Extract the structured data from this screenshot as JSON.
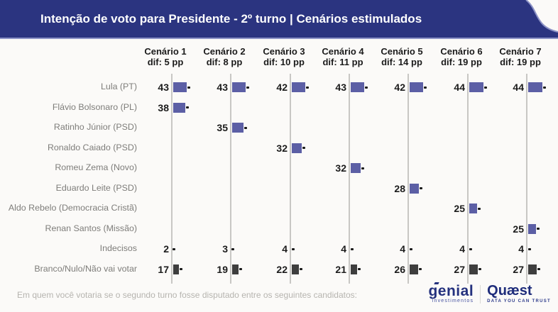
{
  "header": {
    "title": "Intenção de voto para Presidente - 2º turno | Cenários estimulados",
    "bg_color": "#2b3480"
  },
  "chart_data": {
    "type": "bar",
    "orientation": "horizontal",
    "title": "Intenção de voto para Presidente - 2º turno | Cenários estimulados",
    "unit": "%",
    "grid": "vertical-baseline-per-scenario",
    "scenarios": [
      {
        "label": "Cenário 1",
        "dif": "dif: 5 pp"
      },
      {
        "label": "Cenário 2",
        "dif": "dif: 8 pp"
      },
      {
        "label": "Cenário 3",
        "dif": "dif: 10 pp"
      },
      {
        "label": "Cenário 4",
        "dif": "dif: 11 pp"
      },
      {
        "label": "Cenário 5",
        "dif": "dif: 14 pp"
      },
      {
        "label": "Cenário 6",
        "dif": "dif: 19 pp"
      },
      {
        "label": "Cenário 7",
        "dif": "dif: 19 pp"
      }
    ],
    "rows": [
      {
        "label": "Lula (PT)",
        "color": "purple",
        "values": [
          43,
          43,
          42,
          43,
          42,
          44,
          44
        ]
      },
      {
        "label": "Flávio Bolsonaro (PL)",
        "color": "purple",
        "values": [
          38,
          null,
          null,
          null,
          null,
          null,
          null
        ]
      },
      {
        "label": "Ratinho Júnior (PSD)",
        "color": "purple",
        "values": [
          null,
          35,
          null,
          null,
          null,
          null,
          null
        ]
      },
      {
        "label": "Ronaldo Caiado (PSD)",
        "color": "purple",
        "values": [
          null,
          null,
          32,
          null,
          null,
          null,
          null
        ]
      },
      {
        "label": "Romeu Zema (Novo)",
        "color": "purple",
        "values": [
          null,
          null,
          null,
          32,
          null,
          null,
          null
        ]
      },
      {
        "label": "Eduardo Leite (PSD)",
        "color": "purple",
        "values": [
          null,
          null,
          null,
          null,
          28,
          null,
          null
        ]
      },
      {
        "label": "Aldo Rebelo (Democracia Cristã)",
        "color": "purple",
        "values": [
          null,
          null,
          null,
          null,
          null,
          25,
          null
        ]
      },
      {
        "label": "Renan Santos (Missão)",
        "color": "purple",
        "values": [
          null,
          null,
          null,
          null,
          null,
          null,
          25
        ]
      },
      {
        "label": "Indecisos",
        "color": "tick",
        "values": [
          2,
          3,
          4,
          4,
          4,
          4,
          4
        ]
      },
      {
        "label": "Branco/Nulo/Não vai votar",
        "color": "dark",
        "values": [
          17,
          19,
          22,
          21,
          26,
          27,
          27
        ]
      }
    ],
    "colors": {
      "purple": "#5c5fa5",
      "dark": "#3e3e3e",
      "axis": "#c8c7c4",
      "error_tick": "#1a1a1a"
    }
  },
  "footer": {
    "question": "Em quem você votaria se o segundo turno fosse disputado entre os seguintes candidatos:",
    "logos": {
      "genial_name": "genial",
      "genial_sub": "investimentos",
      "quaest_name": "Quæst",
      "quaest_sub": "DATA YOU CAN TRUST"
    }
  }
}
